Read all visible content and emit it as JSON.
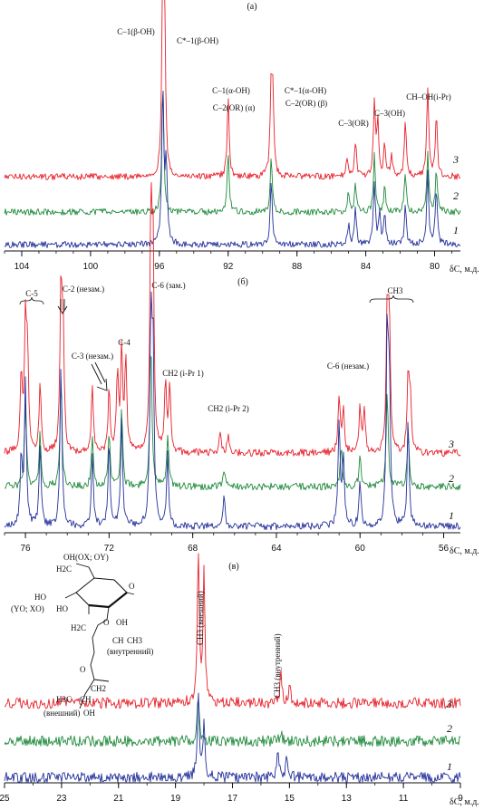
{
  "chart_data": [
    {
      "type": "line",
      "panel_label": "(а)",
      "axis_label": "δC, м.д.",
      "xlim": [
        105,
        78.5
      ],
      "xticks": [
        "104",
        "100",
        "96",
        "92",
        "88",
        "84",
        "80"
      ],
      "xtick_values": [
        104,
        100,
        96,
        92,
        88,
        84,
        80
      ],
      "series": [
        {
          "name": "3",
          "color": "#e8202a",
          "baseline": 0.12,
          "peaks": [
            {
              "x": 95.8,
              "h": 1.0
            },
            {
              "x": 95.7,
              "h": 0.8
            },
            {
              "x": 92.0,
              "h": 0.45
            },
            {
              "x": 89.5,
              "h": 0.5
            },
            {
              "x": 89.4,
              "h": 0.4
            },
            {
              "x": 85.1,
              "h": 0.12
            },
            {
              "x": 84.6,
              "h": 0.2
            },
            {
              "x": 83.5,
              "h": 0.42
            },
            {
              "x": 83.3,
              "h": 0.3
            },
            {
              "x": 82.9,
              "h": 0.18
            },
            {
              "x": 82.5,
              "h": 0.12
            },
            {
              "x": 81.7,
              "h": 0.3
            },
            {
              "x": 80.4,
              "h": 0.5
            },
            {
              "x": 79.9,
              "h": 0.35
            }
          ]
        },
        {
          "name": "2",
          "color": "#1f8a3c",
          "baseline": 0.1,
          "peaks": [
            {
              "x": 95.8,
              "h": 0.8
            },
            {
              "x": 92.0,
              "h": 0.35
            },
            {
              "x": 89.5,
              "h": 0.35
            },
            {
              "x": 85.0,
              "h": 0.12
            },
            {
              "x": 84.6,
              "h": 0.18
            },
            {
              "x": 83.5,
              "h": 0.35
            },
            {
              "x": 82.9,
              "h": 0.15
            },
            {
              "x": 81.7,
              "h": 0.25
            },
            {
              "x": 80.4,
              "h": 0.35
            },
            {
              "x": 79.9,
              "h": 0.25
            }
          ]
        },
        {
          "name": "1",
          "color": "#23309a",
          "baseline": 0.08,
          "peaks": [
            {
              "x": 95.8,
              "h": 0.95
            },
            {
              "x": 95.6,
              "h": 0.5
            },
            {
              "x": 89.5,
              "h": 0.4
            },
            {
              "x": 85.0,
              "h": 0.12
            },
            {
              "x": 84.6,
              "h": 0.22
            },
            {
              "x": 83.5,
              "h": 0.38
            },
            {
              "x": 83.2,
              "h": 0.18
            },
            {
              "x": 82.9,
              "h": 0.2
            },
            {
              "x": 81.7,
              "h": 0.25
            },
            {
              "x": 80.4,
              "h": 0.45
            },
            {
              "x": 79.9,
              "h": 0.35
            }
          ]
        }
      ],
      "annotations": [
        "C–1(β-OH)",
        "C*–1(β-OH)",
        "C–1(α-OH)",
        "C–2(OR) (α)",
        "C*–1(α-OH)",
        "C–2(OR) (β)",
        "C–3(OR)",
        "C–3(OH)",
        "CH–OH(i-Pr)"
      ]
    },
    {
      "type": "line",
      "panel_label": "(б)",
      "axis_label": "δC, м.д.",
      "xlim": [
        77.0,
        55.2
      ],
      "xticks": [
        "76",
        "72",
        "68",
        "64",
        "60",
        "56"
      ],
      "xtick_values": [
        76,
        72,
        68,
        64,
        60,
        56
      ],
      "series": [
        {
          "name": "3",
          "color": "#e8202a",
          "baseline": 0.08,
          "peaks": [
            {
              "x": 76.2,
              "h": 0.35
            },
            {
              "x": 76.0,
              "h": 0.55
            },
            {
              "x": 75.9,
              "h": 0.4
            },
            {
              "x": 75.3,
              "h": 0.3
            },
            {
              "x": 74.3,
              "h": 0.7
            },
            {
              "x": 74.2,
              "h": 0.5
            },
            {
              "x": 72.8,
              "h": 0.3
            },
            {
              "x": 72.0,
              "h": 0.28
            },
            {
              "x": 71.6,
              "h": 0.35
            },
            {
              "x": 71.4,
              "h": 0.45
            },
            {
              "x": 71.2,
              "h": 0.4
            },
            {
              "x": 70.0,
              "h": 1.0
            },
            {
              "x": 69.9,
              "h": 0.85
            },
            {
              "x": 69.3,
              "h": 0.3
            },
            {
              "x": 69.1,
              "h": 0.3
            },
            {
              "x": 66.7,
              "h": 0.1
            },
            {
              "x": 66.3,
              "h": 0.08
            },
            {
              "x": 61.0,
              "h": 0.25
            },
            {
              "x": 60.8,
              "h": 0.2
            },
            {
              "x": 60.0,
              "h": 0.2
            },
            {
              "x": 59.8,
              "h": 0.2
            },
            {
              "x": 58.7,
              "h": 0.6
            },
            {
              "x": 58.6,
              "h": 0.55
            },
            {
              "x": 57.7,
              "h": 0.32
            },
            {
              "x": 57.6,
              "h": 0.25
            }
          ]
        },
        {
          "name": "2",
          "color": "#1f8a3c",
          "baseline": 0.06,
          "peaks": [
            {
              "x": 76.0,
              "h": 0.4
            },
            {
              "x": 75.3,
              "h": 0.25
            },
            {
              "x": 74.3,
              "h": 0.5
            },
            {
              "x": 72.8,
              "h": 0.22
            },
            {
              "x": 72.0,
              "h": 0.25
            },
            {
              "x": 71.4,
              "h": 0.35
            },
            {
              "x": 70.0,
              "h": 0.7
            },
            {
              "x": 69.2,
              "h": 0.25
            },
            {
              "x": 66.5,
              "h": 0.08
            },
            {
              "x": 60.9,
              "h": 0.2
            },
            {
              "x": 60.0,
              "h": 0.15
            },
            {
              "x": 58.7,
              "h": 0.45
            },
            {
              "x": 57.7,
              "h": 0.25
            }
          ]
        },
        {
          "name": "1",
          "color": "#23309a",
          "baseline": 0.05,
          "peaks": [
            {
              "x": 76.2,
              "h": 0.3
            },
            {
              "x": 76.0,
              "h": 0.6
            },
            {
              "x": 75.3,
              "h": 0.35
            },
            {
              "x": 74.3,
              "h": 0.7
            },
            {
              "x": 72.8,
              "h": 0.3
            },
            {
              "x": 72.0,
              "h": 0.35
            },
            {
              "x": 71.4,
              "h": 0.45
            },
            {
              "x": 70.0,
              "h": 0.85
            },
            {
              "x": 69.9,
              "h": 0.7
            },
            {
              "x": 69.2,
              "h": 0.3
            },
            {
              "x": 66.5,
              "h": 0.12
            },
            {
              "x": 61.0,
              "h": 0.45
            },
            {
              "x": 60.8,
              "h": 0.3
            },
            {
              "x": 60.0,
              "h": 0.2
            },
            {
              "x": 58.7,
              "h": 0.8
            },
            {
              "x": 58.6,
              "h": 0.6
            },
            {
              "x": 57.7,
              "h": 0.45
            }
          ]
        }
      ],
      "annotations": [
        "C-5",
        "C-2 (незам.)",
        "C-3 (незам.)",
        "C-4",
        "C-6 (зам.)",
        "CH2 (i-Pr 1)",
        "CH2 (i-Pr 2)",
        "C-6 (незам.)",
        "CH3"
      ]
    },
    {
      "type": "line",
      "panel_label": "(в)",
      "axis_label": "δC, м.д.",
      "xlim": [
        25.0,
        9.0
      ],
      "xticks": [
        "25",
        "23",
        "21",
        "19",
        "17",
        "15",
        "13",
        "11",
        "9"
      ],
      "xtick_values": [
        25,
        23,
        21,
        19,
        17,
        15,
        13,
        11,
        9
      ],
      "series": [
        {
          "name": "3",
          "color": "#e8202a",
          "baseline": 0.1,
          "peaks": [
            {
              "x": 18.2,
              "h": 1.0
            },
            {
              "x": 18.0,
              "h": 0.85
            },
            {
              "x": 15.3,
              "h": 0.2
            },
            {
              "x": 15.0,
              "h": 0.12
            }
          ]
        },
        {
          "name": "2",
          "color": "#1f8a3c",
          "baseline": 0.06,
          "peaks": [
            {
              "x": 18.2,
              "h": 0.55
            },
            {
              "x": 15.3,
              "h": 0.1
            }
          ]
        },
        {
          "name": "1",
          "color": "#23309a",
          "baseline": 0.06,
          "peaks": [
            {
              "x": 18.2,
              "h": 0.75
            },
            {
              "x": 18.0,
              "h": 0.5
            },
            {
              "x": 15.4,
              "h": 0.25
            },
            {
              "x": 15.1,
              "h": 0.15
            }
          ]
        }
      ],
      "annotations": [
        "CH3 (внешний)",
        "CH3 (внутренний)"
      ]
    }
  ],
  "structure_labels": [
    "OH(OX; OY)",
    "H2C",
    "HO",
    "(YO; XO)",
    "HO",
    "O",
    "OH",
    "O",
    "H2C",
    "CH",
    "CH3",
    "(внутренний)",
    "O",
    "CH2",
    "H3C",
    "CH",
    "(внешний)",
    "OH"
  ]
}
